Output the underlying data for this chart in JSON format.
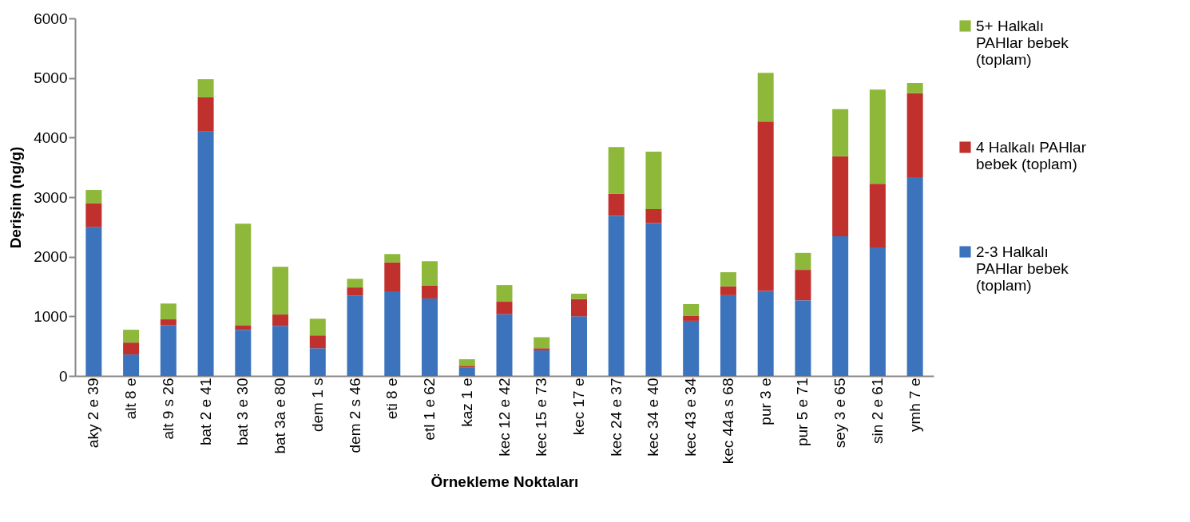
{
  "chart_data": {
    "type": "bar",
    "stacked": true,
    "xlabel": "Örnekleme Noktaları",
    "ylabel": "Derişim (ng/g)",
    "ylim": [
      0,
      6000
    ],
    "yticks": [
      0,
      1000,
      2000,
      3000,
      4000,
      5000,
      6000
    ],
    "grid": false,
    "legend": "right",
    "categories": [
      "aky 2 e 39",
      "alt 8 e",
      "alt 9 s 26",
      "bat 2 e 41",
      "bat 3 e 30",
      "bat 3a e 80",
      "dem 1 s",
      "dem 2 s 46",
      "eti 8 e",
      "etl 1 e 62",
      "kaz 1 e",
      "kec 12 e 42",
      "kec 15 e 73",
      "kec 17 e",
      "kec 24 e 37",
      "kec 34 e 40",
      "kec 43 e 34",
      "kec 44a s 68",
      "pur 3 e",
      "pur 5 e 71",
      "sey 3 e 65",
      "sin 2 e 61",
      "ymh 7 e"
    ],
    "series": [
      {
        "name": "2-3 Halkalı PAHlar bebek (toplam)",
        "color": "#3b73bd",
        "values": [
          2500,
          360,
          850,
          4100,
          775,
          840,
          465,
          1350,
          1420,
          1300,
          145,
          1035,
          430,
          1000,
          2690,
          2565,
          925,
          1355,
          1425,
          1270,
          2345,
          2155,
          3335
        ]
      },
      {
        "name": "4 Halkalı PAHlar bebek (toplam)",
        "color": "#c0302c",
        "values": [
          400,
          200,
          100,
          575,
          70,
          190,
          215,
          135,
          485,
          215,
          25,
          210,
          35,
          290,
          370,
          235,
          80,
          150,
          2845,
          510,
          1340,
          1070,
          1410
        ]
      },
      {
        "name": "5+ Halkalı PAHlar bebek (toplam)",
        "color": "#8db83a",
        "values": [
          220,
          215,
          265,
          305,
          1710,
          800,
          280,
          145,
          140,
          410,
          110,
          280,
          185,
          90,
          780,
          965,
          200,
          235,
          815,
          285,
          790,
          1580,
          170
        ]
      }
    ]
  }
}
